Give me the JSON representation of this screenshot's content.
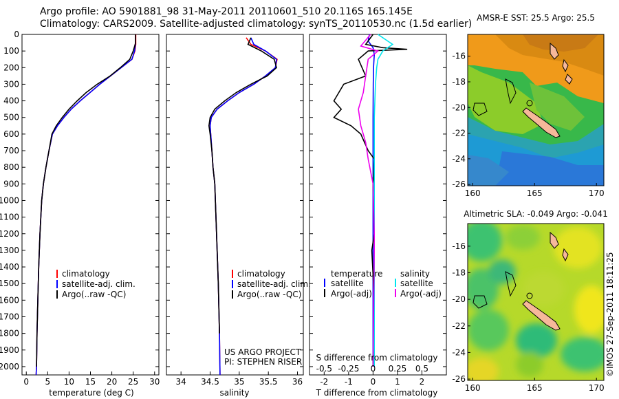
{
  "header": {
    "line1": "Argo profile: AO 5901881_98 31-May-2011 20110601_510 20.116S 165.145E",
    "line2": "Climatology: CARS2009. Satellite-adjusted climatology: synTS_20110530.nc (1.5d earlier)"
  },
  "credit": {
    "project": "US ARGO PROJECT",
    "pi": "PI: STEPHEN RISER"
  },
  "timestamp": "©IMOS 27-Sep-2011 18:11:25",
  "colors": {
    "climatology": "#ff0000",
    "satellite": "#0000ff",
    "argo": "#000000",
    "salinity_satellite": "#00e5ee",
    "salinity_argo": "#ee00ee",
    "coast": "#f6b89a"
  },
  "chart_data": [
    {
      "id": "temperature",
      "type": "line",
      "xlabel": "temperature (deg C)",
      "ylabel": "",
      "xlim": [
        -1,
        31
      ],
      "ylim": [
        2050,
        0
      ],
      "xticks": [
        0,
        5,
        10,
        15,
        20,
        25,
        30
      ],
      "yticks": [
        0,
        100,
        200,
        300,
        400,
        500,
        600,
        700,
        800,
        900,
        1000,
        1100,
        1200,
        1300,
        1400,
        1500,
        1600,
        1700,
        1800,
        1900,
        2000
      ],
      "legend": [
        "climatology",
        "satellite-adj. clim.",
        "Argo(..raw -QC)"
      ],
      "series": [
        {
          "name": "climatology",
          "color": "#ff0000",
          "x": [
            25.6,
            25.6,
            25.4,
            24.7,
            22.2,
            19.7,
            17.2,
            14.9,
            12.6,
            10.5,
            8.8,
            7.3,
            6.1,
            5.3,
            4.6,
            4.0,
            3.6,
            3.2,
            2.9,
            2.7,
            2.5,
            2.4,
            2.3
          ],
          "y": [
            0,
            60,
            100,
            150,
            200,
            250,
            300,
            350,
            400,
            450,
            500,
            550,
            600,
            700,
            800,
            900,
            1000,
            1200,
            1400,
            1600,
            1800,
            2000,
            2050
          ]
        },
        {
          "name": "satellite-adj. clim.",
          "color": "#0000ff",
          "x": [
            25.5,
            25.5,
            25.3,
            24.7,
            22.2,
            19.7,
            17.2,
            14.9,
            12.6,
            10.5,
            8.8,
            7.3,
            6.1,
            5.3,
            4.6,
            4.0,
            3.6,
            3.2,
            2.9,
            2.7,
            2.5,
            2.4,
            2.3
          ],
          "y": [
            0,
            60,
            100,
            150,
            200,
            250,
            300,
            350,
            400,
            450,
            500,
            550,
            600,
            700,
            800,
            900,
            1000,
            1200,
            1400,
            1600,
            1800,
            2000,
            2050
          ]
        },
        {
          "name": "Argo(..raw -QC)",
          "color": "#000000",
          "x": [
            25.5,
            25.5,
            25.0,
            24.2,
            22.0,
            19.6,
            16.6,
            14.0,
            11.9,
            10.0,
            8.4,
            7.0,
            6.0,
            5.3,
            4.6,
            4.0,
            3.6,
            3.2,
            2.9,
            2.7,
            2.5,
            2.4
          ],
          "y": [
            0,
            55,
            100,
            150,
            200,
            250,
            300,
            350,
            400,
            450,
            500,
            550,
            600,
            700,
            800,
            900,
            1000,
            1200,
            1400,
            1600,
            1800,
            2000
          ]
        }
      ]
    },
    {
      "id": "salinity",
      "type": "line",
      "xlabel": "salinity",
      "ylabel": "",
      "xlim": [
        33.75,
        36.1
      ],
      "ylim": [
        2050,
        0
      ],
      "xticks": [
        34,
        34.5,
        35,
        35.5,
        36
      ],
      "legend": [
        "climatology",
        "satellite-adj. clim.",
        "Argo(..raw -QC)"
      ],
      "series": [
        {
          "name": "climatology",
          "color": "#ff0000",
          "x": [
            35.12,
            35.2,
            35.45,
            35.65,
            35.62,
            35.45,
            35.25,
            35.0,
            34.8,
            34.62,
            34.52,
            34.5,
            34.51,
            34.53,
            34.55,
            34.58,
            34.6,
            34.62,
            34.64,
            34.66,
            34.67
          ],
          "y": [
            20,
            60,
            100,
            150,
            200,
            250,
            300,
            350,
            400,
            450,
            500,
            550,
            600,
            700,
            800,
            900,
            1100,
            1300,
            1500,
            1800,
            2050
          ]
        },
        {
          "name": "satellite-adj. clim.",
          "color": "#0000ff",
          "x": [
            35.2,
            35.25,
            35.45,
            35.64,
            35.62,
            35.45,
            35.25,
            35.0,
            34.8,
            34.62,
            34.52,
            34.5,
            34.51,
            34.53,
            34.55,
            34.58,
            34.6,
            34.62,
            34.64,
            34.66,
            34.67
          ],
          "y": [
            20,
            60,
            100,
            150,
            200,
            250,
            300,
            350,
            400,
            450,
            500,
            550,
            600,
            700,
            800,
            900,
            1100,
            1300,
            1500,
            1800,
            2050
          ]
        },
        {
          "name": "Argo(..raw -QC)",
          "color": "#000000",
          "x": [
            35.2,
            35.15,
            35.38,
            35.6,
            35.64,
            35.48,
            35.2,
            34.95,
            34.75,
            34.58,
            34.5,
            34.48,
            34.5,
            34.53,
            34.55,
            34.58,
            34.6,
            34.62,
            34.64,
            34.66
          ],
          "y": [
            20,
            60,
            100,
            150,
            200,
            250,
            300,
            350,
            400,
            450,
            500,
            550,
            600,
            700,
            800,
            900,
            1100,
            1300,
            1500,
            1800
          ]
        }
      ]
    },
    {
      "id": "difference",
      "type": "line",
      "xlabel": "T difference from climatology",
      "xlabel_top": "S difference from climatology",
      "xlim": [
        -2.6,
        3.0
      ],
      "ylim": [
        2050,
        0
      ],
      "xticks": [
        -2,
        -1,
        0,
        1,
        2
      ],
      "xticks_top": [
        "-0.5",
        "-0.25",
        "0",
        "0.25",
        "0.5"
      ],
      "legend_headers": [
        "temperature",
        "salinity"
      ],
      "legend": [
        "satellite",
        "Argo(-adj)",
        "satellite",
        "Argo(-adj)"
      ],
      "series": [
        {
          "name": "satellite",
          "color": "#0000ff",
          "x": [
            -0.15,
            -0.2,
            0,
            0.05,
            0.02,
            0.01,
            0,
            0,
            0,
            0,
            0
          ],
          "y": [
            0,
            40,
            80,
            120,
            200,
            300,
            500,
            800,
            1200,
            1600,
            2000
          ]
        },
        {
          "name": "Argo(-adj)",
          "color": "#000000",
          "x": [
            0,
            -0.3,
            0.4,
            1.4,
            -0.2,
            -0.6,
            -0.3,
            -1.2,
            -1.6,
            -1.3,
            -1.6,
            -0.9,
            -0.5,
            -0.2,
            0.05,
            0.0,
            0.05,
            -0.05,
            0.05,
            0
          ],
          "y": [
            0,
            60,
            80,
            90,
            100,
            150,
            250,
            300,
            400,
            450,
            500,
            550,
            600,
            700,
            750,
            900,
            1200,
            1300,
            1600,
            2000
          ]
        },
        {
          "name": "satellite",
          "color": "#00e5ee",
          "x": [
            0.2,
            0.8,
            0.4,
            0.2,
            0.15,
            0.1,
            0.05,
            0.05,
            0.05,
            0.05
          ],
          "y": [
            0,
            60,
            100,
            150,
            200,
            300,
            500,
            800,
            1200,
            2000
          ]
        },
        {
          "name": "Argo(-adj)",
          "color": "#ee00ee",
          "x": [
            -0.1,
            -0.5,
            0.2,
            -0.2,
            -0.3,
            -0.4,
            -0.6,
            -0.5,
            -0.3,
            -0.2,
            0,
            0.05,
            0.05,
            0
          ],
          "y": [
            0,
            70,
            100,
            150,
            250,
            350,
            450,
            550,
            650,
            750,
            900,
            1200,
            1300,
            2000
          ]
        }
      ]
    },
    {
      "id": "sst_map",
      "type": "heatmap",
      "title": "AMSR-E SST: 25.5 Argo: 25.5",
      "xticks": [
        160,
        165,
        170
      ],
      "yticks": [
        -16,
        -18,
        -20,
        -22,
        -24,
        -26
      ],
      "xlim": [
        159.6,
        170.6
      ],
      "ylim": [
        -26.1,
        -14.3
      ]
    },
    {
      "id": "sla_map",
      "type": "heatmap",
      "title": "Altimetric SLA: -0.049 Argo: -0.041",
      "xticks": [
        160,
        165,
        170
      ],
      "yticks": [
        -16,
        -18,
        -20,
        -22,
        -24,
        -26
      ],
      "xlim": [
        159.6,
        170.6
      ],
      "ylim": [
        -26.1,
        -14.3
      ]
    }
  ]
}
